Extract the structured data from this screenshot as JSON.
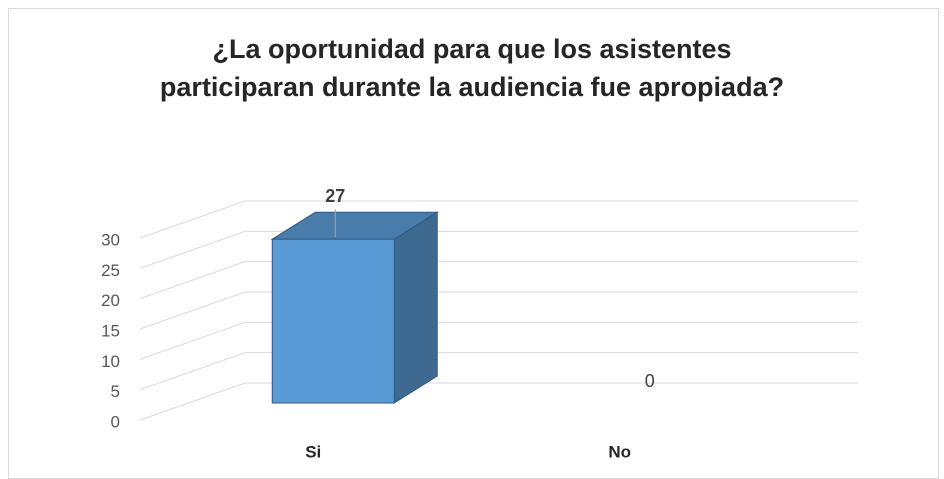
{
  "chart_data": {
    "type": "bar3d",
    "title": "¿La oportunidad para que los asistentes participaran durante la audiencia fue apropiada?",
    "categories": [
      "Si",
      "No"
    ],
    "values": [
      27,
      0
    ],
    "color": "#5b9bd5",
    "ylim": [
      0,
      30
    ],
    "yticks": [
      0,
      5,
      10,
      15,
      20,
      25,
      30
    ],
    "grid": true
  }
}
